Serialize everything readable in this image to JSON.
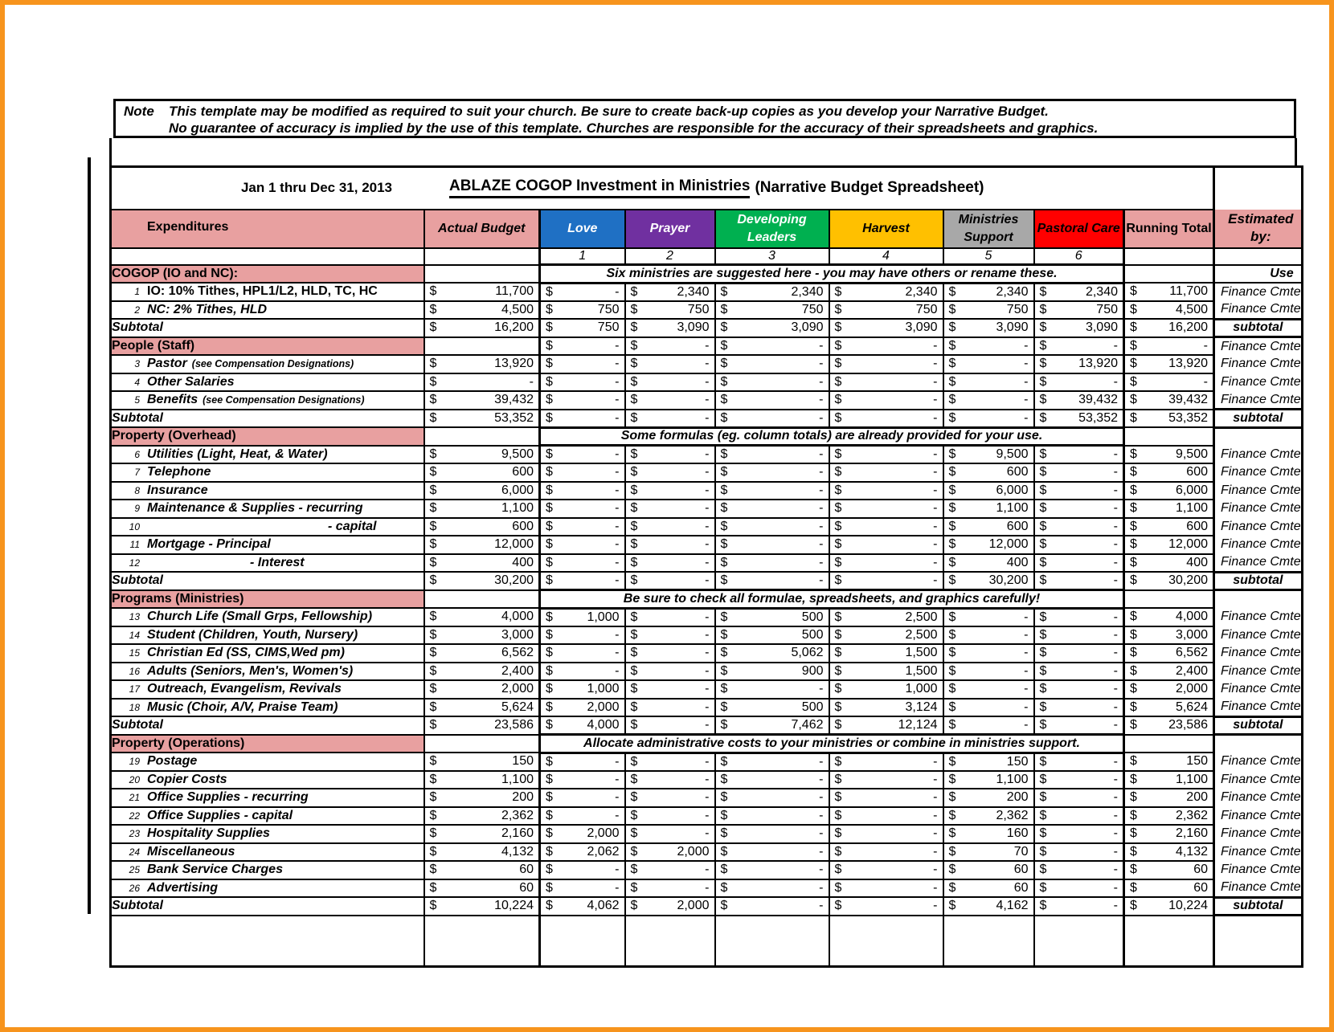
{
  "note": {
    "prefix": "Note",
    "line1": "This template may be modified as required to suit your church.  Be sure to create back-up copies as you develop your Narrative Budget.",
    "line2": "No guarantee of accuracy is implied by the use of this template.  Churches are responsible for the accuracy of their spreadsheets and graphics."
  },
  "title": {
    "date_range": "Jan 1 thru Dec 31, 2013",
    "main": "ABLAZE COGOP  Investment in Ministries",
    "suffix": "(Narrative Budget Spreadsheet)"
  },
  "colors": {
    "pink": "#E8A0A0",
    "love_blue": "#1F70C4",
    "prayer_purple": "#7030A0",
    "developing_green": "#00B050",
    "harvest_gold": "#FFC000",
    "support_gray": "#A8A8A8",
    "pastoral_red": "#FF0000",
    "frame_orange": "#F7941D"
  },
  "columns": {
    "expenditures": {
      "label": "Expenditures"
    },
    "actual": {
      "label": "Actual Budget"
    },
    "ministries": [
      {
        "key": "love",
        "label": "Love",
        "num": "1",
        "bg": "#1F70C4",
        "fg": "#FFFFFF"
      },
      {
        "key": "prayer",
        "label": "Prayer",
        "num": "2",
        "bg": "#7030A0",
        "fg": "#FFFFFF"
      },
      {
        "key": "developing",
        "label": "Developing Leaders",
        "num": "3",
        "bg": "#00B050",
        "fg": "#FFFFFF"
      },
      {
        "key": "harvest",
        "label": "Harvest",
        "num": "4",
        "bg": "#FFC000",
        "fg": "#000000"
      },
      {
        "key": "ministries_support",
        "label": "Ministries Support",
        "num": "5",
        "bg": "#A8A8A8",
        "fg": "#000000"
      },
      {
        "key": "pastoral_care",
        "label": "Pastoral Care",
        "num": "6",
        "bg": "#FF0000",
        "fg": "#000000"
      }
    ],
    "running": {
      "label": "Running Total"
    },
    "estimated": {
      "label": "Estimated by:"
    }
  },
  "sections": [
    {
      "label": "COGOP (IO and NC):",
      "note": "Six ministries are suggested here - you may have others or rename these.",
      "estimated": "Use",
      "values": null,
      "rows": [
        {
          "num": "1",
          "label": "IO: 10% Tithes, HPL1/L2, HLD, TC, HC",
          "values": [
            "11,700",
            "-",
            "2,340",
            "2,340",
            "2,340",
            "2,340",
            "2,340",
            "11,700"
          ],
          "estimated": "Finance Cmte"
        },
        {
          "num": "2",
          "label": "NC: 2% Tithes, HLD",
          "values": [
            "4,500",
            "750",
            "750",
            "750",
            "750",
            "750",
            "750",
            "4,500"
          ],
          "estimated": "Finance Cmte"
        }
      ],
      "subtotal": {
        "label": "Subtotal",
        "values": [
          "16,200",
          "750",
          "3,090",
          "3,090",
          "3,090",
          "3,090",
          "3,090",
          "16,200"
        ],
        "estimated": "subtotal"
      }
    },
    {
      "label": "People (Staff)",
      "note": null,
      "estimated": "Finance Cmte",
      "values": [
        "",
        "-",
        "-",
        "-",
        "-",
        "-",
        "-",
        "-"
      ],
      "rows": [
        {
          "num": "3",
          "label": "Pastor",
          "label_note": "(see Compensation Designations)",
          "values": [
            "13,920",
            "-",
            "-",
            "-",
            "-",
            "-",
            "13,920",
            "13,920"
          ],
          "estimated": "Finance Cmte"
        },
        {
          "num": "4",
          "label": "Other Salaries",
          "values": [
            "-",
            "-",
            "-",
            "-",
            "-",
            "-",
            "-",
            "-"
          ],
          "estimated": "Finance Cmte"
        },
        {
          "num": "5",
          "label": "Benefits",
          "label_note": "(see Compensation Designations)",
          "values": [
            "39,432",
            "-",
            "-",
            "-",
            "-",
            "-",
            "39,432",
            "39,432"
          ],
          "estimated": "Finance Cmte"
        }
      ],
      "subtotal": {
        "label": "Subtotal",
        "values": [
          "53,352",
          "-",
          "-",
          "-",
          "-",
          "-",
          "53,352",
          "53,352"
        ],
        "estimated": "subtotal"
      }
    },
    {
      "label": "Property (Overhead)",
      "note": "Some formulas (eg. column totals) are already provided for your use.",
      "estimated": "",
      "values": null,
      "rows": [
        {
          "num": "6",
          "label": "Utilities (Light, Heat, & Water)",
          "values": [
            "9,500",
            "-",
            "-",
            "-",
            "-",
            "9,500",
            "-",
            "9,500"
          ],
          "estimated": "Finance Cmte"
        },
        {
          "num": "7",
          "label": "Telephone",
          "values": [
            "600",
            "-",
            "-",
            "-",
            "-",
            "600",
            "-",
            "600"
          ],
          "estimated": "Finance Cmte"
        },
        {
          "num": "8",
          "label": "Insurance",
          "values": [
            "6,000",
            "-",
            "-",
            "-",
            "-",
            "6,000",
            "-",
            "6,000"
          ],
          "estimated": "Finance Cmte"
        },
        {
          "num": "9",
          "label": "Maintenance & Supplies - recurring",
          "values": [
            "1,100",
            "-",
            "-",
            "-",
            "-",
            "1,100",
            "-",
            "1,100"
          ],
          "estimated": "Finance Cmte"
        },
        {
          "num": "10",
          "label": "- capital",
          "values": [
            "600",
            "-",
            "-",
            "-",
            "-",
            "600",
            "-",
            "600"
          ],
          "estimated": "Finance Cmte"
        },
        {
          "num": "11",
          "label": "Mortgage  - Principal",
          "values": [
            "12,000",
            "-",
            "-",
            "-",
            "-",
            "12,000",
            "-",
            "12,000"
          ],
          "estimated": "Finance Cmte"
        },
        {
          "num": "12",
          "label": "- Interest",
          "values": [
            "400",
            "-",
            "-",
            "-",
            "-",
            "400",
            "-",
            "400"
          ],
          "estimated": "Finance Cmte"
        }
      ],
      "subtotal": {
        "label": "Subtotal",
        "values": [
          "30,200",
          "-",
          "-",
          "-",
          "-",
          "30,200",
          "-",
          "30,200"
        ],
        "estimated": "subtotal"
      }
    },
    {
      "label": "Programs (Ministries)",
      "note": "Be sure to check all formulae, spreadsheets, and graphics carefully!",
      "estimated": "",
      "values": null,
      "rows": [
        {
          "num": "13",
          "label": "Church Life (Small Grps, Fellowship)",
          "values": [
            "4,000",
            "1,000",
            "-",
            "500",
            "2,500",
            "-",
            "-",
            "4,000"
          ],
          "estimated": "Finance Cmte"
        },
        {
          "num": "14",
          "label": "Student (Children, Youth, Nursery)",
          "values": [
            "3,000",
            "-",
            "-",
            "500",
            "2,500",
            "-",
            "-",
            "3,000"
          ],
          "estimated": "Finance Cmte"
        },
        {
          "num": "15",
          "label": "Christian Ed (SS, CIMS,Wed pm)",
          "values": [
            "6,562",
            "-",
            "-",
            "5,062",
            "1,500",
            "-",
            "-",
            "6,562"
          ],
          "estimated": "Finance Cmte"
        },
        {
          "num": "16",
          "label": "Adults (Seniors, Men's, Women's)",
          "values": [
            "2,400",
            "-",
            "-",
            "900",
            "1,500",
            "-",
            "-",
            "2,400"
          ],
          "estimated": "Finance Cmte"
        },
        {
          "num": "17",
          "label": "Outreach, Evangelism, Revivals",
          "values": [
            "2,000",
            "1,000",
            "-",
            "-",
            "1,000",
            "-",
            "-",
            "2,000"
          ],
          "estimated": "Finance Cmte"
        },
        {
          "num": "18",
          "label": "Music (Choir, A/V, Praise Team)",
          "values": [
            "5,624",
            "2,000",
            "-",
            "500",
            "3,124",
            "-",
            "-",
            "5,624"
          ],
          "estimated": "Finance Cmte"
        }
      ],
      "subtotal": {
        "label": "Subtotal",
        "values": [
          "23,586",
          "4,000",
          "-",
          "7,462",
          "12,124",
          "-",
          "-",
          "23,586"
        ],
        "estimated": "subtotal"
      }
    },
    {
      "label": "Property (Operations)",
      "note": "Allocate administrative costs to your ministries or combine in ministries support.",
      "estimated": "",
      "values": null,
      "rows": [
        {
          "num": "19",
          "label": "Postage",
          "values": [
            "150",
            "-",
            "-",
            "-",
            "-",
            "150",
            "-",
            "150"
          ],
          "estimated": "Finance Cmte"
        },
        {
          "num": "20",
          "label": "Copier Costs",
          "values": [
            "1,100",
            "-",
            "-",
            "-",
            "-",
            "1,100",
            "-",
            "1,100"
          ],
          "estimated": "Finance Cmte"
        },
        {
          "num": "21",
          "label": "Office Supplies - recurring",
          "values": [
            "200",
            "-",
            "-",
            "-",
            "-",
            "200",
            "-",
            "200"
          ],
          "estimated": "Finance Cmte"
        },
        {
          "num": "22",
          "label": "Office Supplies - capital",
          "values": [
            "2,362",
            "-",
            "-",
            "-",
            "-",
            "2,362",
            "-",
            "2,362"
          ],
          "estimated": "Finance Cmte"
        },
        {
          "num": "23",
          "label": "Hospitality Supplies",
          "values": [
            "2,160",
            "2,000",
            "-",
            "-",
            "-",
            "160",
            "-",
            "2,160"
          ],
          "estimated": "Finance Cmte"
        },
        {
          "num": "24",
          "label": "Miscellaneous",
          "values": [
            "4,132",
            "2,062",
            "2,000",
            "-",
            "-",
            "70",
            "-",
            "4,132"
          ],
          "estimated": "Finance Cmte"
        },
        {
          "num": "25",
          "label": "Bank Service Charges",
          "values": [
            "60",
            "-",
            "-",
            "-",
            "-",
            "60",
            "-",
            "60"
          ],
          "estimated": "Finance Cmte"
        },
        {
          "num": "26",
          "label": "Advertising",
          "values": [
            "60",
            "-",
            "-",
            "-",
            "-",
            "60",
            "-",
            "60"
          ],
          "estimated": "Finance Cmte"
        }
      ],
      "subtotal": {
        "label": "Subtotal",
        "values": [
          "10,224",
          "4,062",
          "2,000",
          "-",
          "-",
          "4,162",
          "-",
          "10,224"
        ],
        "estimated": "subtotal"
      }
    }
  ],
  "currency_symbol": "$"
}
